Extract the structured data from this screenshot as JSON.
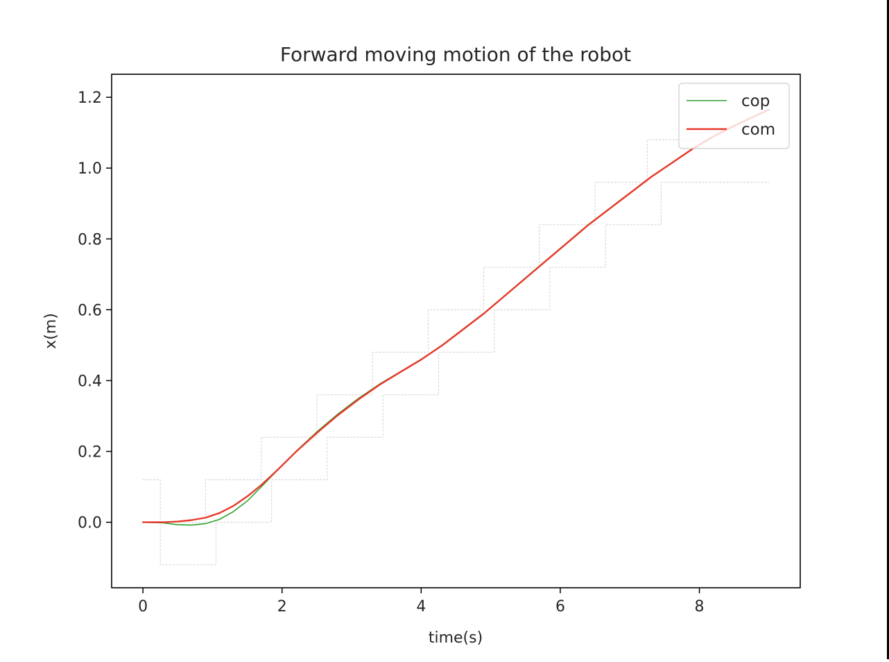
{
  "chart_data": {
    "type": "line",
    "title": "Forward moving motion of the robot",
    "xlabel": "time(s)",
    "ylabel": "x(m)",
    "xlim": [
      -0.45,
      9.45
    ],
    "ylim": [
      -0.185,
      1.265
    ],
    "x_ticks": [
      0,
      2,
      4,
      6,
      8
    ],
    "y_ticks": [
      0.0,
      0.2,
      0.4,
      0.6,
      0.8,
      1.0,
      1.2
    ],
    "x_tick_labels": [
      "0",
      "2",
      "4",
      "6",
      "8"
    ],
    "y_tick_labels": [
      "0.0",
      "0.2",
      "0.4",
      "0.6",
      "0.8",
      "1.0",
      "1.2"
    ],
    "grid": false,
    "legend_position": "top-right",
    "series": [
      {
        "name": "cop",
        "color": "#2ca02c",
        "x": [
          0,
          0.3,
          0.5,
          0.7,
          0.9,
          1.1,
          1.3,
          1.5,
          1.7,
          1.85,
          2.0,
          2.2,
          2.5,
          2.8,
          3.1,
          3.4,
          3.7,
          4.0,
          4.3,
          4.6,
          4.9,
          5.2,
          5.5,
          5.8,
          6.1,
          6.4,
          6.7,
          7.0,
          7.3,
          7.6,
          7.9,
          8.2,
          8.5,
          8.8,
          9.0
        ],
        "y": [
          0.0,
          -0.002,
          -0.007,
          -0.008,
          -0.004,
          0.008,
          0.03,
          0.06,
          0.1,
          0.13,
          0.16,
          0.2,
          0.255,
          0.305,
          0.35,
          0.39,
          0.425,
          0.46,
          0.5,
          0.545,
          0.59,
          0.64,
          0.69,
          0.74,
          0.79,
          0.84,
          0.885,
          0.93,
          0.975,
          1.015,
          1.055,
          1.09,
          1.12,
          1.148,
          1.165
        ]
      },
      {
        "name": "com",
        "color": "#e8382a",
        "x": [
          0,
          0.3,
          0.5,
          0.7,
          0.9,
          1.1,
          1.3,
          1.5,
          1.7,
          1.85,
          2.0,
          2.2,
          2.5,
          2.8,
          3.1,
          3.4,
          3.7,
          4.0,
          4.3,
          4.6,
          4.9,
          5.2,
          5.5,
          5.8,
          6.1,
          6.4,
          6.7,
          7.0,
          7.3,
          7.6,
          7.9,
          8.2,
          8.5,
          8.8,
          9.0
        ],
        "y": [
          0.0,
          0.0,
          0.002,
          0.006,
          0.013,
          0.026,
          0.046,
          0.073,
          0.105,
          0.132,
          0.16,
          0.199,
          0.252,
          0.302,
          0.347,
          0.388,
          0.424,
          0.459,
          0.499,
          0.544,
          0.589,
          0.639,
          0.689,
          0.739,
          0.789,
          0.839,
          0.884,
          0.929,
          0.974,
          1.014,
          1.054,
          1.089,
          1.119,
          1.147,
          1.165
        ]
      }
    ],
    "footprint_outlines": {
      "color": "#cfcfcf",
      "left": {
        "x": [
          0,
          0.25,
          0.25,
          1.05,
          1.05,
          1.85,
          1.85,
          2.65,
          2.65,
          3.45,
          3.45,
          4.25,
          4.25,
          5.05,
          5.05,
          5.85,
          5.85,
          6.65,
          6.65,
          7.45,
          7.45,
          9.0
        ],
        "y": [
          0.12,
          0.12,
          -0.12,
          -0.12,
          0.0,
          0.0,
          0.12,
          0.12,
          0.24,
          0.24,
          0.36,
          0.36,
          0.48,
          0.48,
          0.6,
          0.6,
          0.72,
          0.72,
          0.84,
          0.84,
          0.96,
          0.96
        ]
      },
      "right": {
        "x": [
          0.25,
          0.9,
          0.9,
          1.7,
          1.7,
          2.5,
          2.5,
          3.3,
          3.3,
          4.1,
          4.1,
          4.9,
          4.9,
          5.7,
          5.7,
          6.5,
          6.5,
          7.25,
          7.25,
          8.0
        ],
        "y": [
          0.0,
          0.0,
          0.12,
          0.12,
          0.24,
          0.24,
          0.36,
          0.36,
          0.48,
          0.48,
          0.6,
          0.6,
          0.72,
          0.72,
          0.84,
          0.84,
          0.96,
          0.96,
          1.08,
          1.08
        ]
      }
    }
  }
}
